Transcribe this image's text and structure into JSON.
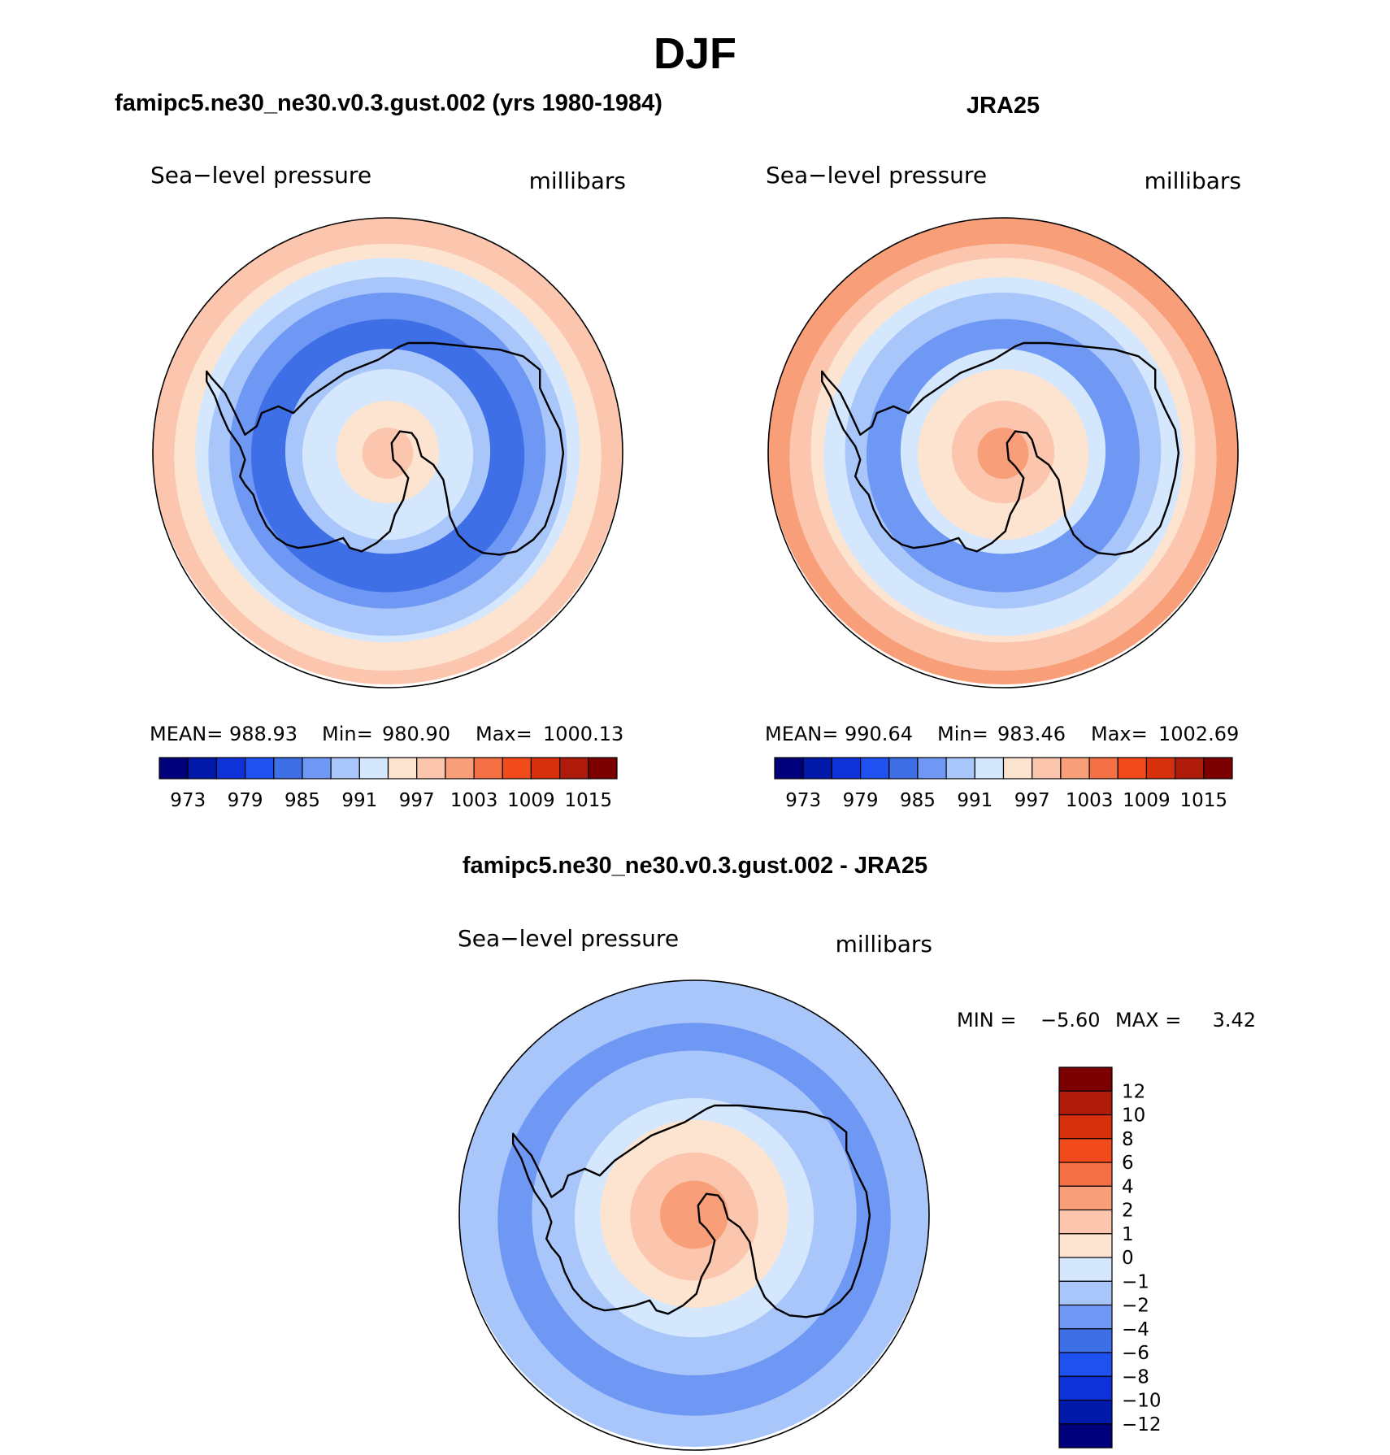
{
  "figure_title": "DJF",
  "colors": {
    "model_scale": [
      "#00007a",
      "#0019a8",
      "#0f32d8",
      "#1f50f0",
      "#3f6fe6",
      "#6f97f4",
      "#a9c6fb",
      "#d4e7fd",
      "#fde4d1",
      "#fbc6ad",
      "#f89e78",
      "#f57044",
      "#f34a1c",
      "#d6300c",
      "#ae1b0a",
      "#7d0000"
    ],
    "diff_scale": [
      "#00007a",
      "#0019a8",
      "#0f32d8",
      "#1f50f0",
      "#3f6fe6",
      "#6f97f4",
      "#a9c6fb",
      "#d4e7fd",
      "#fde4d1",
      "#fbc6ad",
      "#f89e78",
      "#f57044",
      "#f34a1c",
      "#d6300c",
      "#ae1b0a",
      "#7d0000"
    ]
  },
  "chart_data": [
    {
      "type": "heatmap",
      "projection": "south-polar-stereographic",
      "title": "famipc5.ne30_ne30.v0.3.gust.002 (yrs 1980-1984)",
      "left_label": "Sea−level pressure",
      "right_label": "millibars",
      "stats": {
        "mean_label": "MEAN=",
        "mean": "988.93",
        "min_label": "Min=",
        "min": "980.90",
        "max_label": "Max=",
        "max": "1000.13"
      },
      "colorbar": {
        "orientation": "horizontal",
        "levels": [
          973,
          976,
          979,
          982,
          985,
          988,
          991,
          994,
          997,
          1000,
          1003,
          1006,
          1009,
          1012,
          1015
        ],
        "tick_labels": [
          "973",
          "979",
          "985",
          "991",
          "997",
          "1003",
          "1009",
          "1015"
        ]
      },
      "field_bands": [
        {
          "from_lat": -90,
          "to_lat": -84,
          "value": 998
        },
        {
          "from_lat": -84,
          "to_lat": -78,
          "value": 995
        },
        {
          "from_lat": -78,
          "to_lat": -70,
          "value": 992
        },
        {
          "from_lat": -70,
          "to_lat": -66,
          "value": 989
        },
        {
          "from_lat": -66,
          "to_lat": -58,
          "value": 983
        },
        {
          "from_lat": -58,
          "to_lat": -53,
          "value": 986
        },
        {
          "from_lat": -53,
          "to_lat": -48,
          "value": 989
        },
        {
          "from_lat": -48,
          "to_lat": -45,
          "value": 992
        },
        {
          "from_lat": -45,
          "to_lat": -40,
          "value": 995
        },
        {
          "from_lat": -40,
          "to_lat": -35,
          "value": 998
        }
      ]
    },
    {
      "type": "heatmap",
      "projection": "south-polar-stereographic",
      "title": "JRA25",
      "left_label": "Sea−level pressure",
      "right_label": "millibars",
      "stats": {
        "mean_label": "MEAN=",
        "mean": "990.64",
        "min_label": "Min=",
        "min": "983.46",
        "max_label": "Max=",
        "max": "1002.69"
      },
      "colorbar": {
        "orientation": "horizontal",
        "levels": [
          973,
          976,
          979,
          982,
          985,
          988,
          991,
          994,
          997,
          1000,
          1003,
          1006,
          1009,
          1012,
          1015
        ],
        "tick_labels": [
          "973",
          "979",
          "985",
          "991",
          "997",
          "1003",
          "1009",
          "1015"
        ]
      },
      "field_bands": [
        {
          "from_lat": -90,
          "to_lat": -84,
          "value": 1000
        },
        {
          "from_lat": -84,
          "to_lat": -78,
          "value": 998
        },
        {
          "from_lat": -78,
          "to_lat": -70,
          "value": 995
        },
        {
          "from_lat": -70,
          "to_lat": -66,
          "value": 992
        },
        {
          "from_lat": -66,
          "to_lat": -58,
          "value": 986
        },
        {
          "from_lat": -58,
          "to_lat": -53,
          "value": 989
        },
        {
          "from_lat": -53,
          "to_lat": -48,
          "value": 992
        },
        {
          "from_lat": -48,
          "to_lat": -45,
          "value": 995
        },
        {
          "from_lat": -45,
          "to_lat": -40,
          "value": 998
        },
        {
          "from_lat": -40,
          "to_lat": -35,
          "value": 1001
        }
      ]
    },
    {
      "type": "heatmap",
      "projection": "south-polar-stereographic",
      "title": "famipc5.ne30_ne30.v0.3.gust.002 - JRA25",
      "left_label": "Sea−level pressure",
      "right_label": "millibars",
      "stats": {
        "min_label": "MIN =",
        "min": "−5.60",
        "max_label": "MAX =",
        "max": "3.42"
      },
      "colorbar": {
        "orientation": "vertical",
        "levels": [
          -12,
          -10,
          -8,
          -6,
          -4,
          -2,
          -1,
          0,
          1,
          2,
          4,
          6,
          8,
          10,
          12
        ],
        "tick_labels": [
          "12",
          "10",
          "8",
          "6",
          "4",
          "2",
          "1",
          "0",
          "−1",
          "−2",
          "−4",
          "−6",
          "−8",
          "−10",
          "−12"
        ]
      },
      "field_bands": [
        {
          "from_lat": -90,
          "to_lat": -82,
          "value": 3
        },
        {
          "from_lat": -82,
          "to_lat": -75,
          "value": 1.5
        },
        {
          "from_lat": -75,
          "to_lat": -68,
          "value": 0.5
        },
        {
          "from_lat": -68,
          "to_lat": -62,
          "value": -0.5
        },
        {
          "from_lat": -62,
          "to_lat": -52,
          "value": -1.5
        },
        {
          "from_lat": -52,
          "to_lat": -44,
          "value": -3
        },
        {
          "from_lat": -44,
          "to_lat": -35,
          "value": -1.5
        }
      ]
    }
  ]
}
